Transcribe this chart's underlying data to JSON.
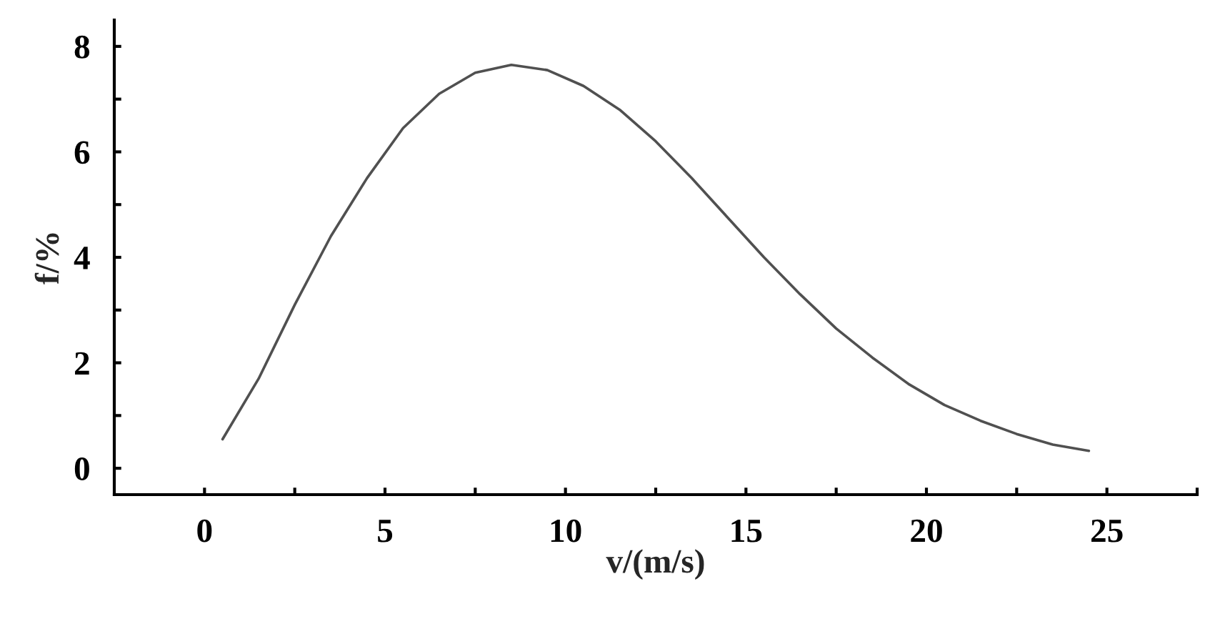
{
  "chart_data": {
    "type": "line",
    "xlabel": "v/(m/s)",
    "ylabel": "f/%",
    "x": [
      0.5,
      1.5,
      2.5,
      3.5,
      4.5,
      5.5,
      6.5,
      7.5,
      8.5,
      9.5,
      10.5,
      11.5,
      12.5,
      13.5,
      14.5,
      15.5,
      16.5,
      17.5,
      18.5,
      19.5,
      20.5,
      21.5,
      22.5,
      23.5,
      24.5
    ],
    "series": [
      {
        "color": "#505050",
        "values": [
          0.55,
          1.7,
          3.1,
          4.4,
          5.5,
          6.45,
          7.1,
          7.5,
          7.65,
          7.55,
          7.25,
          6.8,
          6.2,
          5.5,
          4.75,
          4.0,
          3.3,
          2.65,
          2.1,
          1.6,
          1.2,
          0.9,
          0.65,
          0.45,
          0.33
        ]
      }
    ],
    "xlim": [
      -2.5,
      27.5
    ],
    "ylim": [
      -0.5,
      8.5
    ],
    "xticks": [
      0,
      {
        "value": 2.5,
        "label": null
      },
      5,
      {
        "value": 7.5,
        "label": null
      },
      10,
      {
        "value": 12.5,
        "label": null
      },
      15,
      {
        "value": 17.5,
        "label": null
      },
      20,
      {
        "value": 22.5,
        "label": null
      },
      25,
      {
        "value": 27.5,
        "label": null
      }
    ],
    "yticks": [
      0,
      {
        "value": 1,
        "label": null
      },
      2,
      {
        "value": 3,
        "label": null
      },
      4,
      {
        "value": 5,
        "label": null
      },
      6,
      {
        "value": 7,
        "label": null
      },
      8
    ],
    "grid": false,
    "marker": "none",
    "line_style": "solid"
  }
}
